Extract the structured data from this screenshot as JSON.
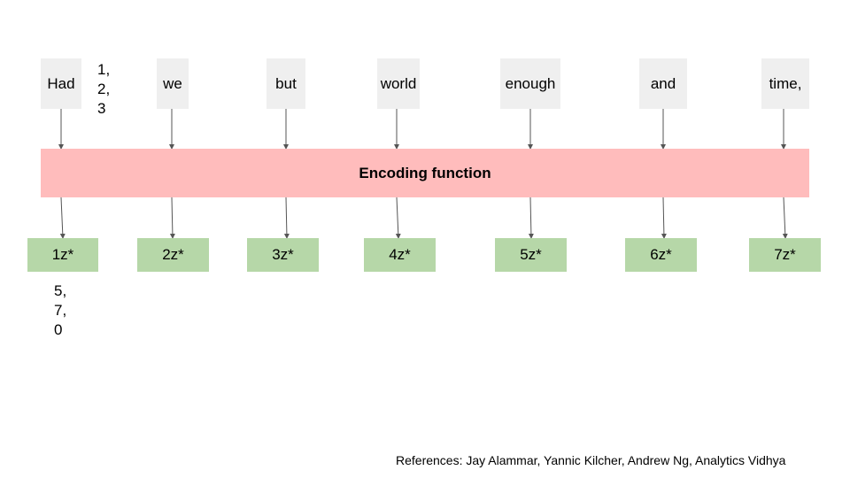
{
  "words": [
    "Had",
    "we",
    "but",
    "world",
    "enough",
    "and",
    "time,"
  ],
  "encoder": {
    "label": "Encoding function"
  },
  "outputs": [
    "1z*",
    "2z*",
    "3z*",
    "4z*",
    "5z*",
    "6z*",
    "7z*"
  ],
  "input_vector": [
    "1,",
    "2,",
    "3"
  ],
  "output_vector": [
    "5,",
    "7,",
    "0"
  ],
  "references": "References: Jay Alammar, Yannic Kilcher, Andrew Ng, Analytics Vidhya",
  "colors": {
    "word_box": "#efefef",
    "encoder": "#ffbcbc",
    "output_box": "#b6d7a8",
    "arrow": "#555555"
  }
}
